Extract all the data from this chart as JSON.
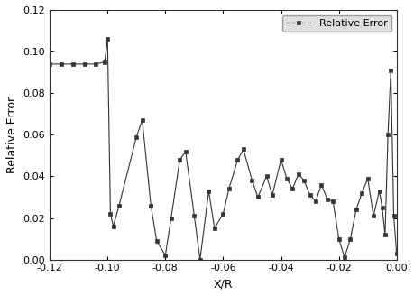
{
  "x": [
    -0.12,
    -0.116,
    -0.112,
    -0.108,
    -0.104,
    -0.101,
    -0.1,
    -0.099,
    -0.098,
    -0.096,
    -0.09,
    -0.088,
    -0.085,
    -0.083,
    -0.08,
    -0.078,
    -0.075,
    -0.073,
    -0.07,
    -0.068,
    -0.065,
    -0.063,
    -0.06,
    -0.058,
    -0.055,
    -0.053,
    -0.05,
    -0.048,
    -0.045,
    -0.043,
    -0.04,
    -0.038,
    -0.036,
    -0.034,
    -0.032,
    -0.03,
    -0.028,
    -0.026,
    -0.024,
    -0.022,
    -0.02,
    -0.018,
    -0.016,
    -0.014,
    -0.012,
    -0.01,
    -0.008,
    -0.006,
    -0.005,
    -0.004,
    -0.003,
    -0.002,
    -0.001,
    0.0
  ],
  "y": [
    0.094,
    0.094,
    0.094,
    0.094,
    0.094,
    0.095,
    0.106,
    0.022,
    0.016,
    0.026,
    0.059,
    0.067,
    0.026,
    0.009,
    0.002,
    0.02,
    0.048,
    0.052,
    0.021,
    0.0,
    0.033,
    0.015,
    0.022,
    0.034,
    0.048,
    0.053,
    0.038,
    0.03,
    0.04,
    0.031,
    0.048,
    0.039,
    0.034,
    0.041,
    0.038,
    0.031,
    0.028,
    0.036,
    0.029,
    0.028,
    0.01,
    0.001,
    0.01,
    0.024,
    0.032,
    0.039,
    0.021,
    0.033,
    0.025,
    0.012,
    0.06,
    0.091,
    0.021,
    0.003
  ],
  "xlim": [
    -0.12,
    0.0
  ],
  "ylim": [
    0.0,
    0.12
  ],
  "xlabel": "X/R",
  "ylabel": "Relative Error",
  "legend_label": "Relative Error",
  "xticks": [
    -0.12,
    -0.1,
    -0.08,
    -0.06,
    -0.04,
    -0.02,
    0.0
  ],
  "yticks": [
    0.0,
    0.02,
    0.04,
    0.06,
    0.08,
    0.1,
    0.12
  ],
  "line_color": "#333333",
  "marker": "s",
  "marker_size": 3.5,
  "line_style": "-",
  "line_width": 0.8,
  "fig_bg": "#ffffff",
  "ax_bg": "#ffffff",
  "legend_facecolor": "#d8d8d8",
  "legend_edgecolor": "#888888",
  "spine_color": "#333333",
  "tick_fontsize": 8,
  "label_fontsize": 9,
  "legend_fontsize": 8
}
